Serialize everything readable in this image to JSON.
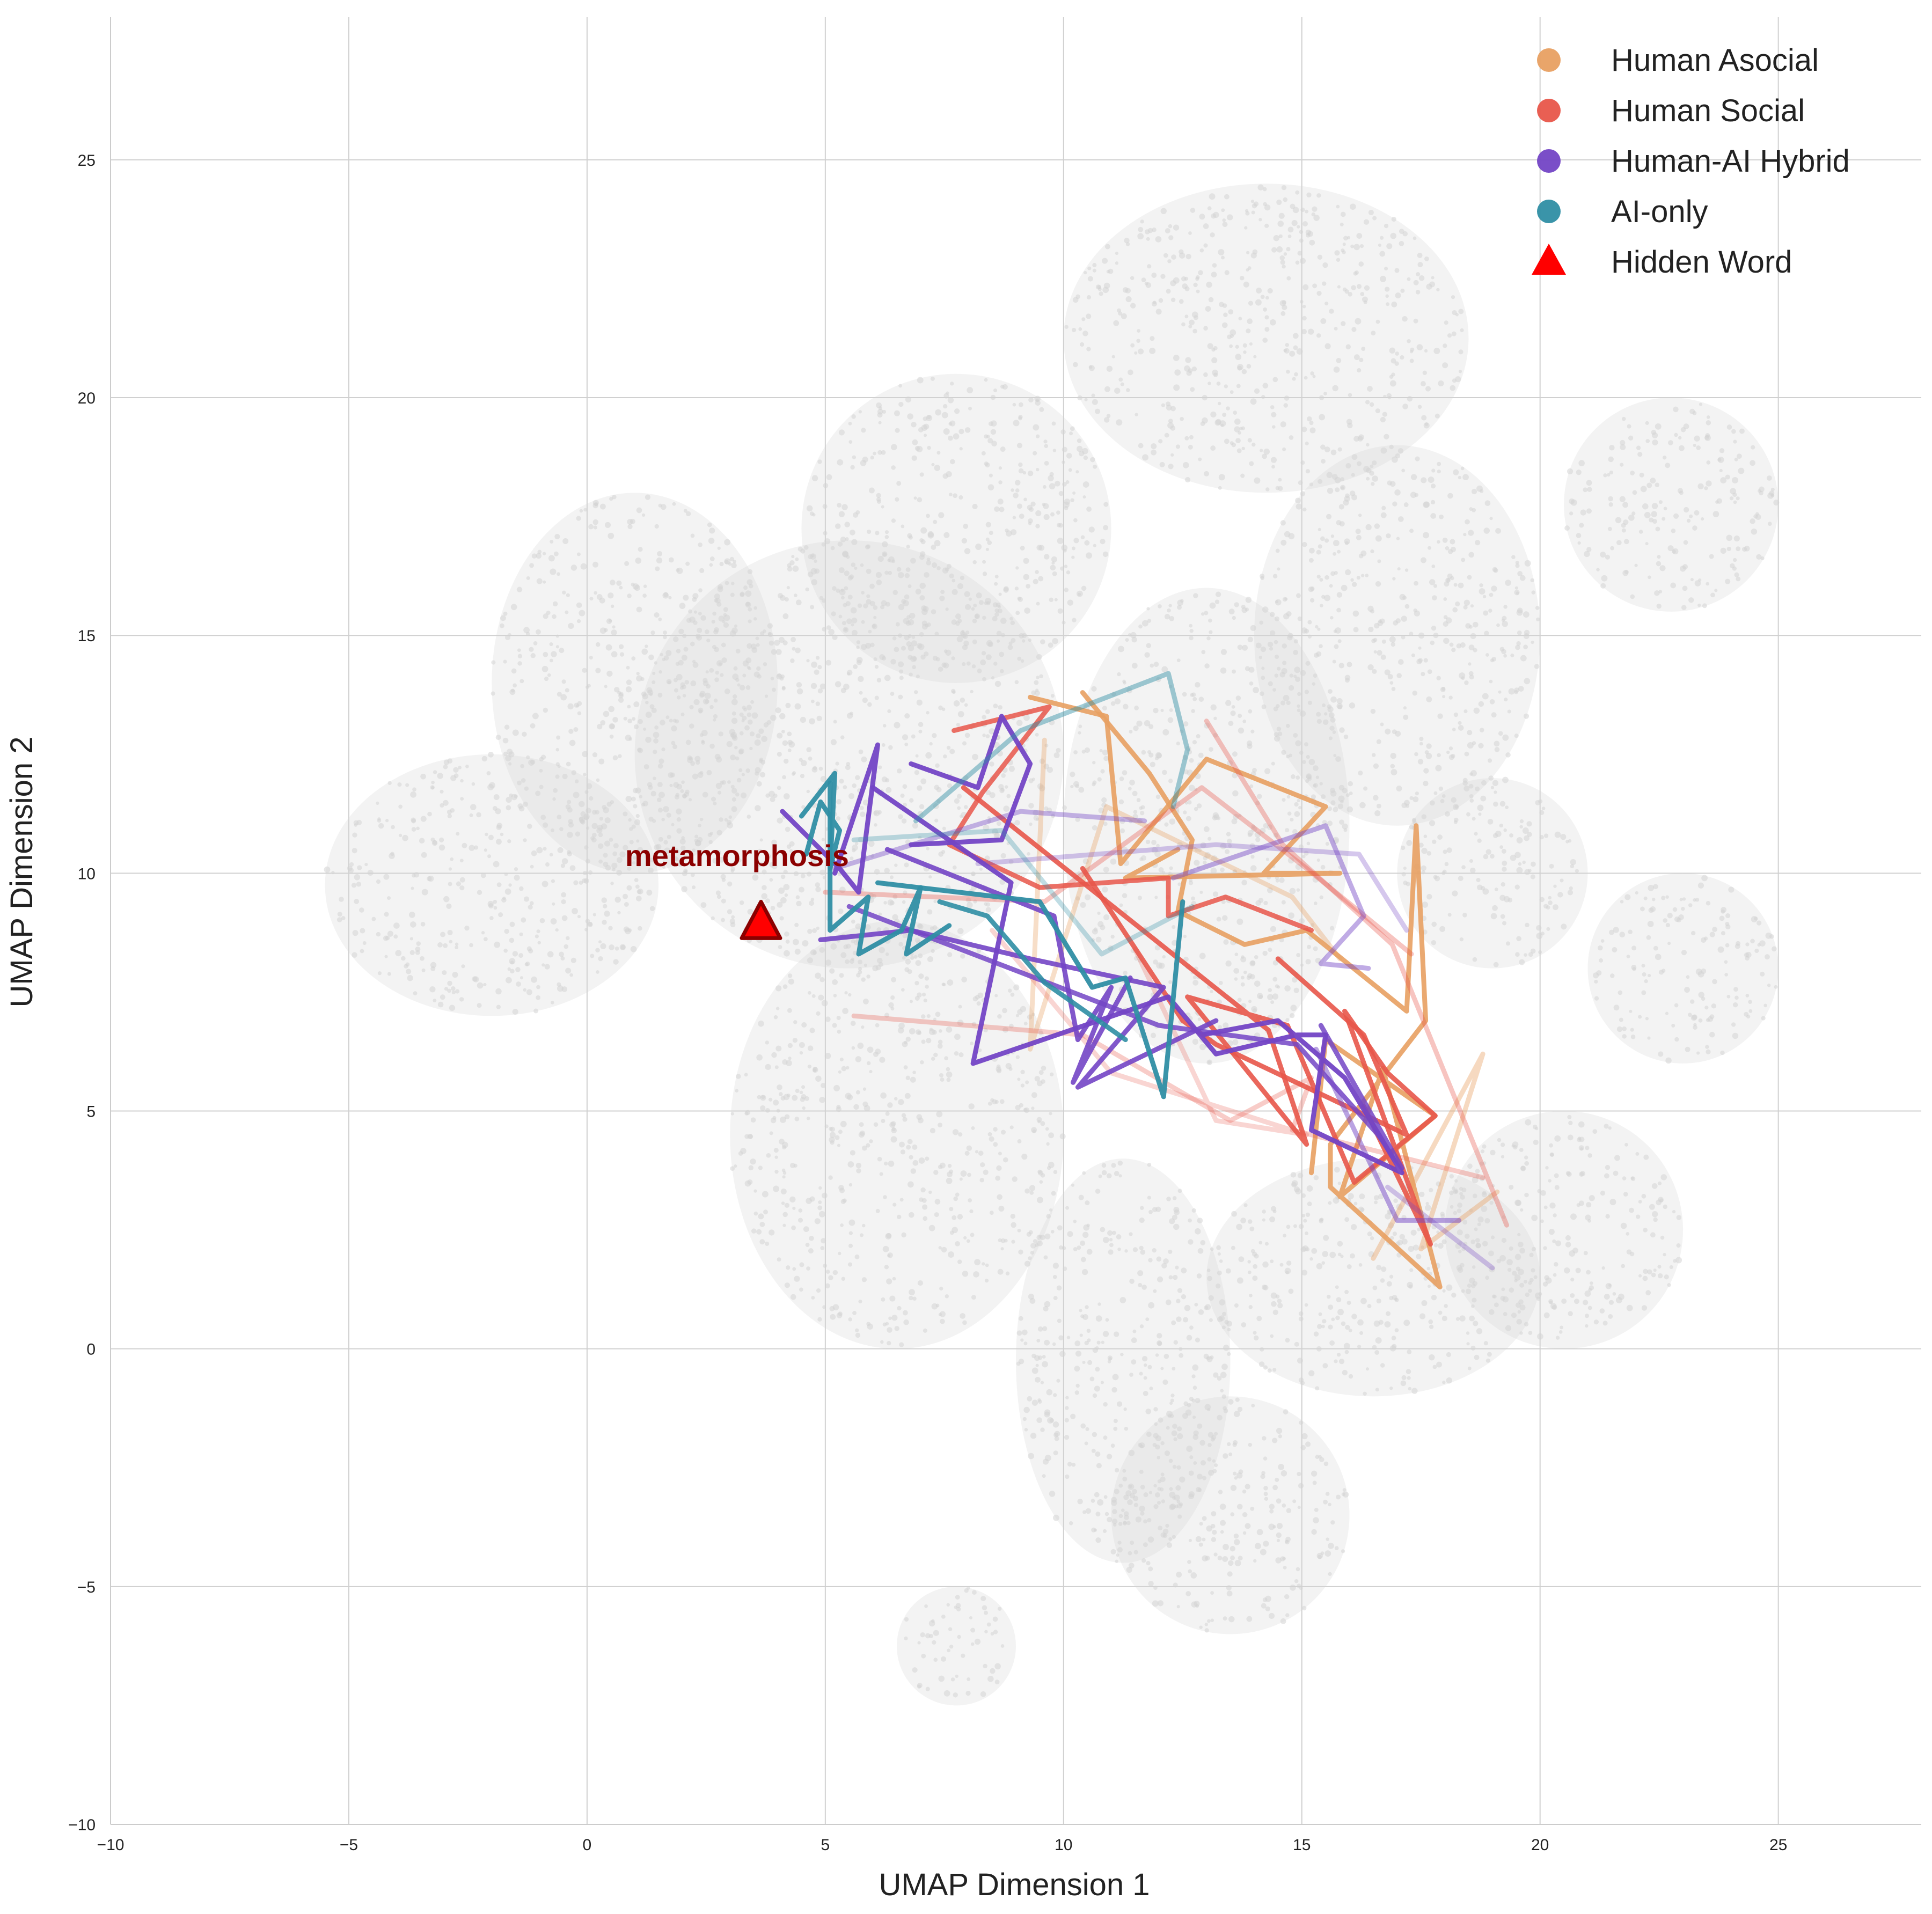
{
  "chart_data": {
    "type": "line",
    "xlabel": "UMAP Dimension 1",
    "ylabel": "UMAP Dimension 2",
    "xlim": [
      -10,
      28
    ],
    "ylim": [
      -10,
      28
    ],
    "xticks": [
      -10,
      -5,
      0,
      5,
      10,
      15,
      20,
      25
    ],
    "yticks": [
      -10,
      -5,
      0,
      5,
      10,
      15,
      20,
      25
    ],
    "xtick_labels": [
      "−10",
      "−5",
      "0",
      "5",
      "10",
      "15",
      "20",
      "25"
    ],
    "ytick_labels": [
      "−10",
      "−5",
      "0",
      "5",
      "10",
      "15",
      "20",
      "25"
    ],
    "grid": true,
    "legend_position": "top-right",
    "background_point_color": "#d3d3d3",
    "background_regions": [
      {
        "x": [
          -5.5,
          1.5
        ],
        "y": [
          7,
          12.5
        ]
      },
      {
        "x": [
          -2,
          4
        ],
        "y": [
          10,
          18
        ]
      },
      {
        "x": [
          1,
          10
        ],
        "y": [
          8,
          17
        ]
      },
      {
        "x": [
          4.5,
          11
        ],
        "y": [
          14,
          20.5
        ]
      },
      {
        "x": [
          10,
          18.5
        ],
        "y": [
          18,
          24.5
        ]
      },
      {
        "x": [
          14,
          20
        ],
        "y": [
          11,
          19
        ]
      },
      {
        "x": [
          20.5,
          25
        ],
        "y": [
          15.5,
          20
        ]
      },
      {
        "x": [
          3,
          10
        ],
        "y": [
          0,
          9
        ]
      },
      {
        "x": [
          9,
          13.5
        ],
        "y": [
          -4.5,
          4
        ]
      },
      {
        "x": [
          10,
          16
        ],
        "y": [
          6,
          16
        ]
      },
      {
        "x": [
          17,
          21
        ],
        "y": [
          8,
          12
        ]
      },
      {
        "x": [
          18,
          23
        ],
        "y": [
          0,
          5
        ]
      },
      {
        "x": [
          13,
          20
        ],
        "y": [
          -1,
          4
        ]
      },
      {
        "x": [
          11,
          16
        ],
        "y": [
          -6,
          -1
        ]
      },
      {
        "x": [
          6.5,
          9
        ],
        "y": [
          -7.5,
          -5
        ]
      },
      {
        "x": [
          21,
          25
        ],
        "y": [
          6,
          10
        ]
      }
    ],
    "series": [
      {
        "name": "Human Asocial",
        "color": "#e8a062",
        "segments": [
          {
            "points": [
              [
                9.3,
                13.7
              ],
              [
                10.9,
                13.3
              ],
              [
                11.2,
                10.2
              ],
              [
                13,
                12.4
              ],
              [
                15.5,
                11.4
              ],
              [
                14.2,
                10
              ],
              [
                15.8,
                10
              ],
              [
                11.3,
                9.9
              ],
              [
                12.4,
                10.5
              ]
            ],
            "alpha": 0.9
          },
          {
            "points": [
              [
                10.4,
                13.8
              ],
              [
                11.8,
                12.1
              ],
              [
                12.7,
                10.7
              ],
              [
                12.4,
                9.2
              ],
              [
                13.8,
                8.5
              ],
              [
                15.1,
                8.8
              ],
              [
                17.2,
                7.1
              ],
              [
                17.4,
                11
              ],
              [
                17.6,
                6.9
              ],
              [
                15.6,
                4.3
              ],
              [
                15.6,
                3.4
              ],
              [
                17.9,
                1.3
              ],
              [
                16.7,
                5.9
              ],
              [
                15.8,
                3.2
              ],
              [
                17.8,
                4.9
              ],
              [
                15.5,
                6.5
              ],
              [
                15.2,
                3.7
              ]
            ],
            "alpha": 0.9
          },
          {
            "points": [
              [
                9.6,
                12.8
              ],
              [
                9.3,
                6.3
              ],
              [
                10.9,
                11.4
              ],
              [
                14.8,
                9.5
              ],
              [
                15.8,
                8.2
              ]
            ],
            "alpha": 0.35
          },
          {
            "points": [
              [
                16.5,
                1.9
              ],
              [
                18.8,
                6.2
              ],
              [
                17.5,
                2.1
              ],
              [
                19.1,
                3.3
              ]
            ],
            "alpha": 0.4
          }
        ]
      },
      {
        "name": "Human Social",
        "color": "#e8564a",
        "segments": [
          {
            "points": [
              [
                7.7,
                13
              ],
              [
                9.7,
                13.5
              ],
              [
                8.3,
                11.7
              ],
              [
                7.6,
                10.6
              ],
              [
                9.5,
                9.7
              ],
              [
                12.2,
                9.9
              ],
              [
                12.2,
                9.1
              ],
              [
                13.4,
                9.5
              ],
              [
                15.2,
                8.8
              ]
            ],
            "alpha": 0.85
          },
          {
            "points": [
              [
                7.9,
                11.8
              ],
              [
                14.3,
                6.7
              ],
              [
                15.1,
                4.3
              ],
              [
                12.6,
                7.4
              ],
              [
                14.7,
                6.8
              ],
              [
                16.1,
                3.5
              ],
              [
                17.8,
                4.9
              ],
              [
                16.8,
                5.8
              ],
              [
                15.9,
                7.1
              ],
              [
                17.7,
                2.2
              ],
              [
                16.3,
                5.1
              ]
            ],
            "alpha": 0.9
          },
          {
            "points": [
              [
                10.4,
                10.1
              ],
              [
                12.5,
                6.9
              ],
              [
                13.2,
                6.4
              ],
              [
                17.2,
                4.5
              ],
              [
                16.3,
                6.6
              ],
              [
                14.5,
                8.2
              ]
            ],
            "alpha": 0.9
          },
          {
            "points": [
              [
                13,
                13.2
              ],
              [
                14.6,
                10.6
              ],
              [
                16.9,
                8.5
              ],
              [
                19.3,
                2.6
              ]
            ],
            "alpha": 0.35
          },
          {
            "points": [
              [
                5.6,
                7
              ],
              [
                10.4,
                6.6
              ],
              [
                13.5,
                4.8
              ],
              [
                15.2,
                5.7
              ],
              [
                14.8,
                4.6
              ],
              [
                18.8,
                3.6
              ]
            ],
            "alpha": 0.3
          },
          {
            "points": [
              [
                5,
                9.6
              ],
              [
                9.6,
                9.4
              ],
              [
                12.9,
                11.8
              ],
              [
                15.1,
                10.1
              ],
              [
                17.3,
                8.3
              ]
            ],
            "alpha": 0.35
          },
          {
            "points": [
              [
                8.5,
                8.8
              ],
              [
                11,
                5.8
              ],
              [
                15.1,
                4.5
              ],
              [
                13.2,
                4.8
              ],
              [
                11.5,
                8.4
              ]
            ],
            "alpha": 0.25
          }
        ]
      },
      {
        "name": "Human-AI Hybrid",
        "color": "#7345c5",
        "segments": [
          {
            "points": [
              [
                4.1,
                11.3
              ],
              [
                5.3,
                10.1
              ],
              [
                5.7,
                9.6
              ],
              [
                6.1,
                12.7
              ],
              [
                5.2,
                10
              ]
            ],
            "alpha": 0.95
          },
          {
            "points": [
              [
                6.8,
                12.3
              ],
              [
                8.2,
                11.8
              ],
              [
                8.7,
                13.3
              ],
              [
                9.3,
                12.3
              ],
              [
                8.7,
                10.7
              ],
              [
                6.8,
                10.6
              ]
            ],
            "alpha": 0.95
          },
          {
            "points": [
              [
                6,
                11.8
              ],
              [
                8.9,
                9.8
              ],
              [
                8.1,
                6
              ],
              [
                12.2,
                7.4
              ],
              [
                13.2,
                6.2
              ],
              [
                14.9,
                6.6
              ],
              [
                15.5,
                6.6
              ],
              [
                15.2,
                4.6
              ],
              [
                17.1,
                3.7
              ],
              [
                15.9,
                5.7
              ],
              [
                14.5,
                6.9
              ],
              [
                12.9,
                6.6
              ]
            ],
            "alpha": 0.95
          },
          {
            "points": [
              [
                6.3,
                10.5
              ],
              [
                9.8,
                9.1
              ],
              [
                10.3,
                6.5
              ],
              [
                11,
                7.6
              ],
              [
                10.2,
                5.6
              ],
              [
                11.4,
                7.8
              ]
            ],
            "alpha": 0.9
          },
          {
            "points": [
              [
                5.5,
                9.3
              ],
              [
                12,
                6.8
              ],
              [
                14.9,
                6.4
              ],
              [
                16.6,
                4.5
              ],
              [
                17.1,
                3.8
              ],
              [
                15.4,
                6.8
              ]
            ],
            "alpha": 0.85
          },
          {
            "points": [
              [
                4.9,
                8.6
              ],
              [
                6.8,
                8.8
              ],
              [
                9.3,
                8.2
              ],
              [
                12.1,
                7.6
              ],
              [
                11.5,
                6.9
              ],
              [
                10.3,
                5.5
              ],
              [
                13.2,
                6.9
              ]
            ],
            "alpha": 0.9
          },
          {
            "points": [
              [
                5.2,
                10.1
              ],
              [
                9.1,
                11.3
              ],
              [
                11.7,
                11.1
              ]
            ],
            "alpha": 0.4
          },
          {
            "points": [
              [
                12.3,
                9.9
              ],
              [
                15.5,
                11
              ],
              [
                16.3,
                9.1
              ],
              [
                15.4,
                8.1
              ],
              [
                16.4,
                8
              ]
            ],
            "alpha": 0.45
          },
          {
            "points": [
              [
                8.2,
                10.2
              ],
              [
                13.2,
                10.6
              ],
              [
                16.2,
                10.4
              ],
              [
                17.2,
                8.8
              ]
            ],
            "alpha": 0.3
          },
          {
            "points": [
              [
                15.3,
                6.3
              ],
              [
                17,
                2.7
              ],
              [
                18.3,
                2.7
              ]
            ],
            "alpha": 0.5
          },
          {
            "points": [
              [
                16.8,
                3.4
              ],
              [
                19,
                1.7
              ]
            ],
            "alpha": 0.3
          }
        ]
      },
      {
        "name": "AI-only",
        "color": "#2f8ea4",
        "segments": [
          {
            "points": [
              [
                4.5,
                11.2
              ],
              [
                5.2,
                12.1
              ],
              [
                5.1,
                10.1
              ],
              [
                5.3,
                10.9
              ],
              [
                4.9,
                11.5
              ],
              [
                4.6,
                10.4
              ]
            ],
            "alpha": 0.95
          },
          {
            "points": [
              [
                5.1,
                11.9
              ],
              [
                5.1,
                8.8
              ],
              [
                5.9,
                9.5
              ],
              [
                5.7,
                8.3
              ],
              [
                6.6,
                8.8
              ],
              [
                7,
                9.7
              ],
              [
                6.7,
                8.3
              ],
              [
                7.6,
                8.9
              ]
            ],
            "alpha": 0.95
          },
          {
            "points": [
              [
                6.1,
                9.8
              ],
              [
                9.5,
                9.4
              ],
              [
                10.6,
                7.6
              ],
              [
                11.3,
                7.8
              ],
              [
                12.1,
                5.3
              ],
              [
                12.5,
                9.4
              ]
            ],
            "alpha": 0.95
          },
          {
            "points": [
              [
                7.4,
                9.4
              ],
              [
                8.4,
                9.1
              ],
              [
                9.6,
                7.7
              ],
              [
                11.3,
                6.5
              ]
            ],
            "alpha": 0.9
          },
          {
            "points": [
              [
                6.9,
                11.1
              ],
              [
                9.1,
                13
              ],
              [
                12.2,
                14.2
              ],
              [
                12.6,
                12.6
              ],
              [
                12.3,
                11.4
              ]
            ],
            "alpha": 0.45
          },
          {
            "points": [
              [
                5.6,
                10.7
              ],
              [
                8.7,
                10.9
              ],
              [
                10.8,
                8.3
              ],
              [
                12.7,
                9.3
              ]
            ],
            "alpha": 0.3
          }
        ]
      }
    ],
    "hidden_word": {
      "name": "Hidden Word",
      "label": "metamorphosis",
      "x": 3.65,
      "y": 8.95,
      "color": "#ff0000",
      "edge_color": "#8b0000",
      "label_color": "#8b0000"
    }
  }
}
